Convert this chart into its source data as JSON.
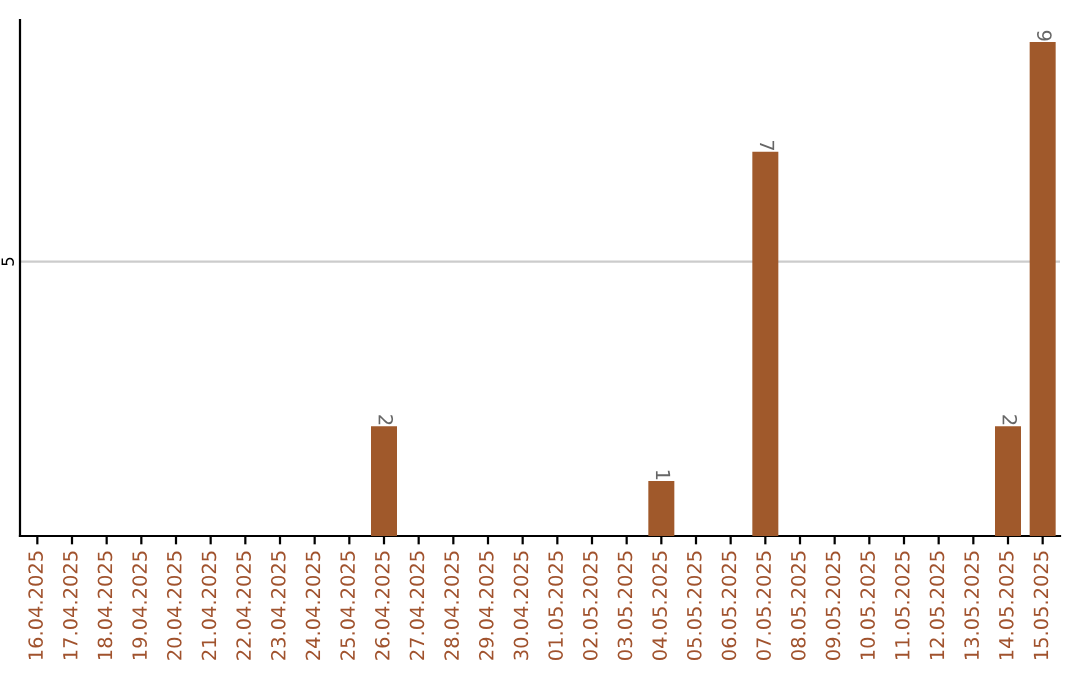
{
  "chart_data": {
    "type": "bar",
    "categories": [
      "16.04.2025",
      "17.04.2025",
      "18.04.2025",
      "19.04.2025",
      "20.04.2025",
      "21.04.2025",
      "22.04.2025",
      "23.04.2025",
      "24.04.2025",
      "25.04.2025",
      "26.04.2025",
      "27.04.2025",
      "28.04.2025",
      "29.04.2025",
      "30.04.2025",
      "01.05.2025",
      "02.05.2025",
      "03.05.2025",
      "04.05.2025",
      "05.05.2025",
      "06.05.2025",
      "07.05.2025",
      "08.05.2025",
      "09.05.2025",
      "10.05.2025",
      "11.05.2025",
      "12.05.2025",
      "13.05.2025",
      "14.05.2025",
      "15.05.2025"
    ],
    "values": [
      0,
      0,
      0,
      0,
      0,
      0,
      0,
      0,
      0,
      0,
      2,
      0,
      0,
      0,
      0,
      0,
      0,
      0,
      1,
      0,
      0,
      7,
      0,
      0,
      0,
      0,
      0,
      0,
      2,
      9
    ],
    "value_labels": [
      null,
      null,
      null,
      null,
      null,
      null,
      null,
      null,
      null,
      null,
      "2",
      null,
      null,
      null,
      null,
      null,
      null,
      null,
      "1",
      null,
      null,
      "7",
      null,
      null,
      null,
      null,
      null,
      null,
      "2",
      "9"
    ],
    "color": "#a0592b",
    "ylim": [
      0,
      9.4
    ],
    "yticks": [
      5
    ],
    "grid": "y"
  }
}
